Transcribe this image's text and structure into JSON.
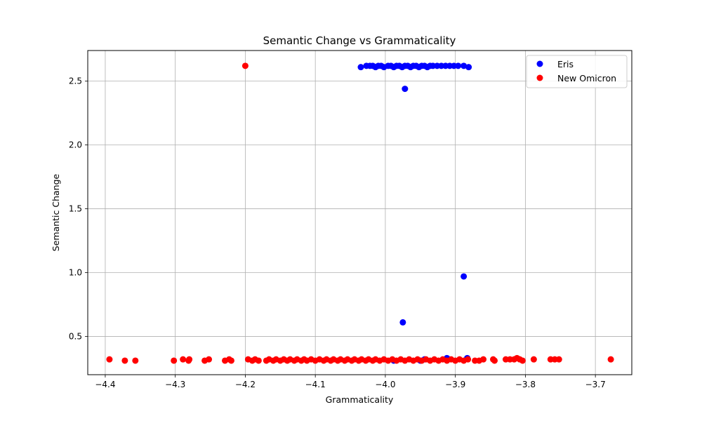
{
  "chart_data": {
    "type": "scatter",
    "title": "Semantic Change vs Grammaticality",
    "xlabel": "Grammaticality",
    "ylabel": "Semantic Change",
    "xlim": [
      -4.425,
      -3.648
    ],
    "ylim": [
      0.2,
      2.74
    ],
    "xticks": [
      -4.4,
      -4.3,
      -4.2,
      -4.1,
      -4.0,
      -3.9,
      -3.8,
      -3.7
    ],
    "xtick_labels": [
      "−4.4",
      "−4.3",
      "−4.2",
      "−4.1",
      "−4.0",
      "−3.9",
      "−3.8",
      "−3.7"
    ],
    "yticks": [
      0.5,
      1.0,
      1.5,
      2.0,
      2.5
    ],
    "ytick_labels": [
      "0.5",
      "1.0",
      "1.5",
      "2.0",
      "2.5"
    ],
    "grid": true,
    "legend_position": "top-right",
    "series": [
      {
        "name": "Eris",
        "color": "#0000ff",
        "points": [
          [
            -4.035,
            2.61
          ],
          [
            -4.027,
            2.62
          ],
          [
            -4.022,
            2.62
          ],
          [
            -4.018,
            2.62
          ],
          [
            -4.014,
            2.61
          ],
          [
            -4.01,
            2.62
          ],
          [
            -4.006,
            2.62
          ],
          [
            -4.002,
            2.61
          ],
          [
            -3.996,
            2.62
          ],
          [
            -3.992,
            2.62
          ],
          [
            -3.988,
            2.61
          ],
          [
            -3.984,
            2.62
          ],
          [
            -3.98,
            2.62
          ],
          [
            -3.976,
            2.61
          ],
          [
            -3.972,
            2.62
          ],
          [
            -3.968,
            2.62
          ],
          [
            -3.964,
            2.61
          ],
          [
            -3.96,
            2.62
          ],
          [
            -3.956,
            2.62
          ],
          [
            -3.952,
            2.61
          ],
          [
            -3.948,
            2.62
          ],
          [
            -3.944,
            2.62
          ],
          [
            -3.94,
            2.61
          ],
          [
            -3.936,
            2.62
          ],
          [
            -3.932,
            2.62
          ],
          [
            -3.926,
            2.62
          ],
          [
            -3.92,
            2.62
          ],
          [
            -3.914,
            2.62
          ],
          [
            -3.908,
            2.62
          ],
          [
            -3.902,
            2.62
          ],
          [
            -3.896,
            2.62
          ],
          [
            -3.888,
            2.62
          ],
          [
            -3.881,
            2.61
          ],
          [
            -3.972,
            2.44
          ],
          [
            -3.888,
            0.97
          ],
          [
            -3.975,
            0.61
          ],
          [
            -3.988,
            0.31
          ],
          [
            -3.95,
            0.31
          ],
          [
            -3.944,
            0.32
          ],
          [
            -3.912,
            0.33
          ],
          [
            -3.883,
            0.33
          ]
        ]
      },
      {
        "name": "New Omicron",
        "color": "#ff0000",
        "points": [
          [
            -4.394,
            0.32
          ],
          [
            -4.372,
            0.31
          ],
          [
            -4.357,
            0.31
          ],
          [
            -4.302,
            0.31
          ],
          [
            -4.289,
            0.32
          ],
          [
            -4.281,
            0.31
          ],
          [
            -4.28,
            0.32
          ],
          [
            -4.258,
            0.31
          ],
          [
            -4.252,
            0.32
          ],
          [
            -4.229,
            0.31
          ],
          [
            -4.223,
            0.32
          ],
          [
            -4.22,
            0.31
          ],
          [
            -4.2,
            2.62
          ],
          [
            -4.196,
            0.32
          ],
          [
            -4.19,
            0.31
          ],
          [
            -4.186,
            0.32
          ],
          [
            -4.181,
            0.31
          ],
          [
            -4.17,
            0.31
          ],
          [
            -4.166,
            0.32
          ],
          [
            -4.16,
            0.31
          ],
          [
            -4.156,
            0.32
          ],
          [
            -4.15,
            0.31
          ],
          [
            -4.145,
            0.32
          ],
          [
            -4.14,
            0.31
          ],
          [
            -4.136,
            0.32
          ],
          [
            -4.13,
            0.31
          ],
          [
            -4.126,
            0.32
          ],
          [
            -4.12,
            0.31
          ],
          [
            -4.116,
            0.32
          ],
          [
            -4.112,
            0.31
          ],
          [
            -4.106,
            0.32
          ],
          [
            -4.1,
            0.31
          ],
          [
            -4.094,
            0.32
          ],
          [
            -4.088,
            0.31
          ],
          [
            -4.084,
            0.32
          ],
          [
            -4.078,
            0.31
          ],
          [
            -4.074,
            0.32
          ],
          [
            -4.068,
            0.31
          ],
          [
            -4.064,
            0.32
          ],
          [
            -4.058,
            0.31
          ],
          [
            -4.054,
            0.32
          ],
          [
            -4.048,
            0.31
          ],
          [
            -4.044,
            0.32
          ],
          [
            -4.038,
            0.31
          ],
          [
            -4.034,
            0.32
          ],
          [
            -4.028,
            0.31
          ],
          [
            -4.024,
            0.32
          ],
          [
            -4.018,
            0.31
          ],
          [
            -4.014,
            0.32
          ],
          [
            -4.008,
            0.31
          ],
          [
            -4.002,
            0.32
          ],
          [
            -3.996,
            0.31
          ],
          [
            -3.99,
            0.32
          ],
          [
            -3.984,
            0.31
          ],
          [
            -3.978,
            0.32
          ],
          [
            -3.972,
            0.31
          ],
          [
            -3.966,
            0.32
          ],
          [
            -3.96,
            0.31
          ],
          [
            -3.954,
            0.32
          ],
          [
            -3.948,
            0.31
          ],
          [
            -3.942,
            0.32
          ],
          [
            -3.936,
            0.31
          ],
          [
            -3.93,
            0.32
          ],
          [
            -3.924,
            0.31
          ],
          [
            -3.918,
            0.32
          ],
          [
            -3.912,
            0.31
          ],
          [
            -3.906,
            0.32
          ],
          [
            -3.9,
            0.31
          ],
          [
            -3.894,
            0.32
          ],
          [
            -3.888,
            0.31
          ],
          [
            -3.882,
            0.32
          ],
          [
            -3.872,
            0.31
          ],
          [
            -3.866,
            0.31
          ],
          [
            -3.86,
            0.32
          ],
          [
            -3.846,
            0.32
          ],
          [
            -3.844,
            0.31
          ],
          [
            -3.828,
            0.32
          ],
          [
            -3.822,
            0.32
          ],
          [
            -3.816,
            0.32
          ],
          [
            -3.812,
            0.33
          ],
          [
            -3.808,
            0.32
          ],
          [
            -3.804,
            0.31
          ],
          [
            -3.788,
            0.32
          ],
          [
            -3.764,
            0.32
          ],
          [
            -3.758,
            0.32
          ],
          [
            -3.752,
            0.32
          ],
          [
            -3.678,
            0.32
          ]
        ]
      }
    ]
  }
}
